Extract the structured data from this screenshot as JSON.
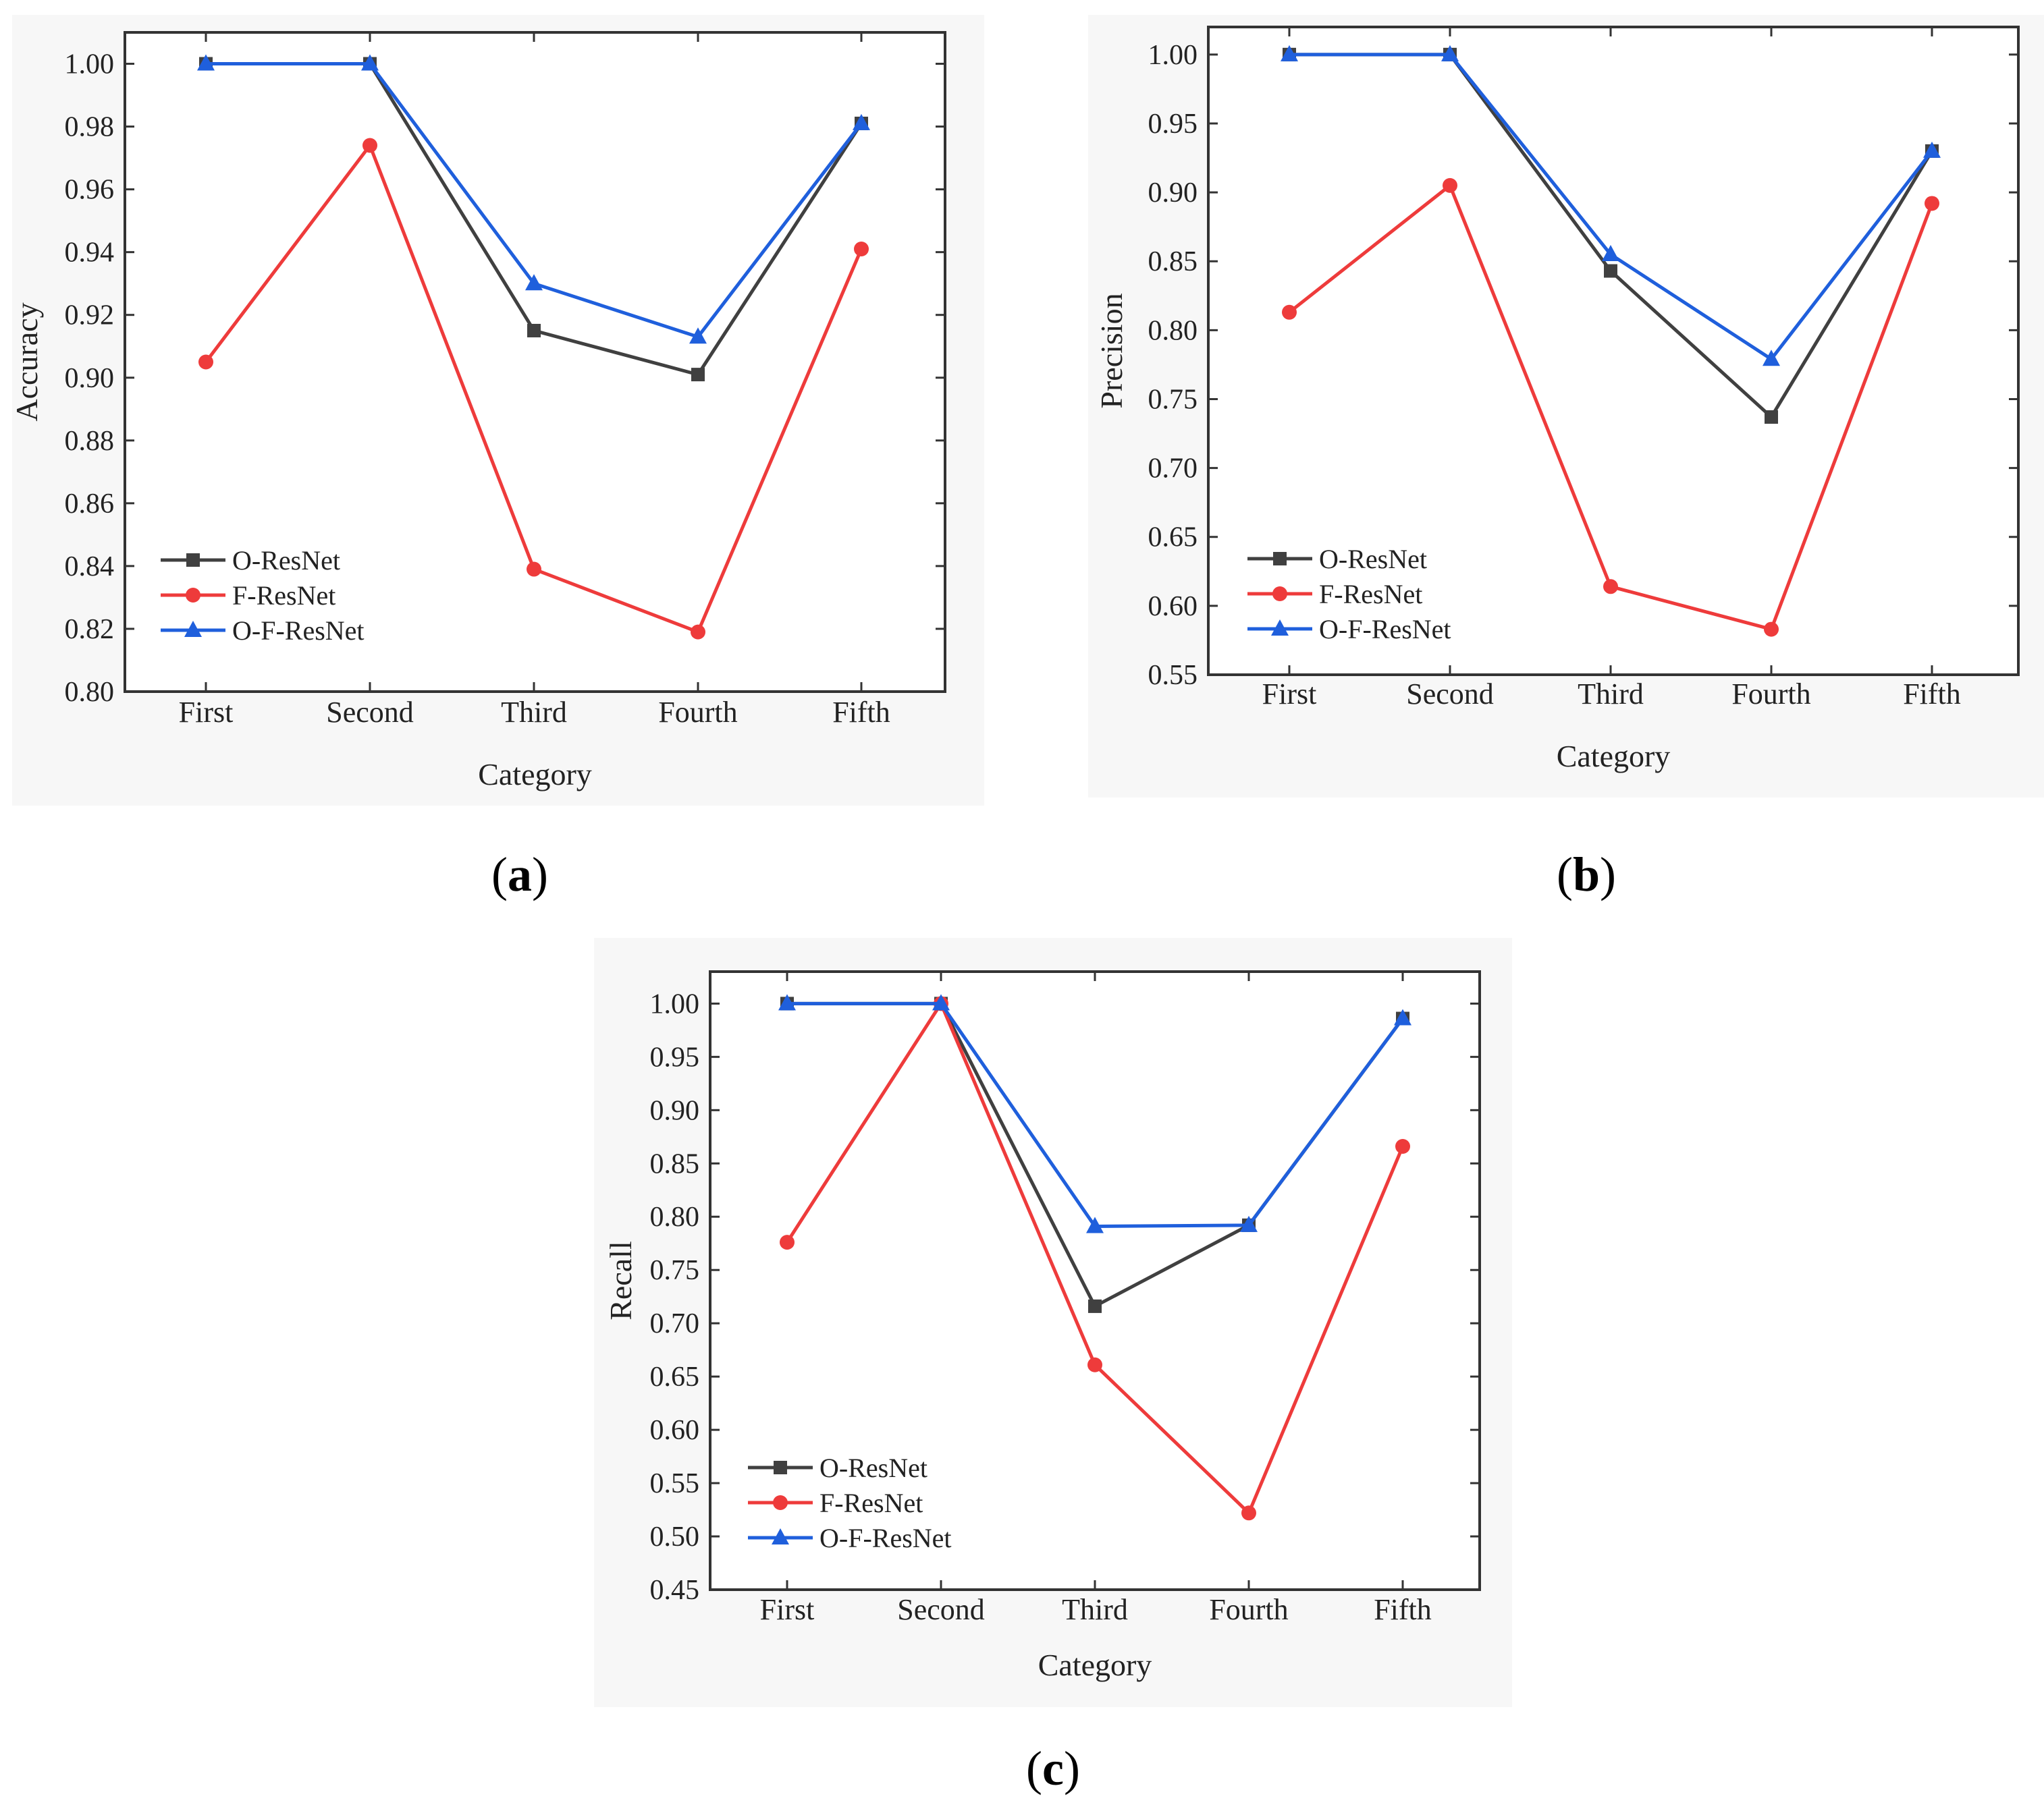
{
  "chart_data": [
    {
      "id": "a",
      "type": "line",
      "panel_label": "a",
      "title": "",
      "xlabel": "Category",
      "ylabel": "Accuracy",
      "categories": [
        "First",
        "Second",
        "Third",
        "Fourth",
        "Fifth"
      ],
      "ylim": [
        0.8,
        1.01
      ],
      "yticks": [
        0.8,
        0.82,
        0.84,
        0.86,
        0.88,
        0.9,
        0.92,
        0.94,
        0.96,
        0.98,
        1.0
      ],
      "ytick_labels": [
        "0.80",
        "0.82",
        "0.84",
        "0.86",
        "0.88",
        "0.90",
        "0.92",
        "0.94",
        "0.96",
        "0.98",
        "1.00"
      ],
      "legend_position": "bottom-left",
      "series": [
        {
          "name": "O-ResNet",
          "color": "#404040",
          "marker": "square",
          "values": [
            1.0,
            1.0,
            0.915,
            0.901,
            0.981
          ]
        },
        {
          "name": "F-ResNet",
          "color": "#ee3b3b",
          "marker": "circle",
          "values": [
            0.905,
            0.974,
            0.839,
            0.819,
            0.941
          ]
        },
        {
          "name": "O-F-ResNet",
          "color": "#1f5fdc",
          "marker": "triangle",
          "values": [
            1.0,
            1.0,
            0.93,
            0.913,
            0.981
          ]
        }
      ]
    },
    {
      "id": "b",
      "type": "line",
      "panel_label": "b",
      "title": "",
      "xlabel": "Category",
      "ylabel": "Precision",
      "categories": [
        "First",
        "Second",
        "Third",
        "Fourth",
        "Fifth"
      ],
      "ylim": [
        0.55,
        1.02
      ],
      "yticks": [
        0.55,
        0.6,
        0.65,
        0.7,
        0.75,
        0.8,
        0.85,
        0.9,
        0.95,
        1.0
      ],
      "ytick_labels": [
        "0.55",
        "0.60",
        "0.65",
        "0.70",
        "0.75",
        "0.80",
        "0.85",
        "0.90",
        "0.95",
        "1.00"
      ],
      "legend_position": "bottom-left",
      "series": [
        {
          "name": "O-ResNet",
          "color": "#404040",
          "marker": "square",
          "values": [
            1.0,
            1.0,
            0.843,
            0.737,
            0.93
          ]
        },
        {
          "name": "F-ResNet",
          "color": "#ee3b3b",
          "marker": "circle",
          "values": [
            0.813,
            0.905,
            0.614,
            0.583,
            0.892
          ]
        },
        {
          "name": "O-F-ResNet",
          "color": "#1f5fdc",
          "marker": "triangle",
          "values": [
            1.0,
            1.0,
            0.855,
            0.779,
            0.93
          ]
        }
      ]
    },
    {
      "id": "c",
      "type": "line",
      "panel_label": "c",
      "title": "",
      "xlabel": "Category",
      "ylabel": "Recall",
      "categories": [
        "First",
        "Second",
        "Third",
        "Fourth",
        "Fifth"
      ],
      "ylim": [
        0.45,
        1.03
      ],
      "yticks": [
        0.45,
        0.5,
        0.55,
        0.6,
        0.65,
        0.7,
        0.75,
        0.8,
        0.85,
        0.9,
        0.95,
        1.0
      ],
      "ytick_labels": [
        "0.45",
        "0.50",
        "0.55",
        "0.60",
        "0.65",
        "0.70",
        "0.75",
        "0.80",
        "0.85",
        "0.90",
        "0.95",
        "1.00"
      ],
      "legend_position": "bottom-left",
      "series": [
        {
          "name": "O-ResNet",
          "color": "#404040",
          "marker": "square",
          "values": [
            1.0,
            1.0,
            0.716,
            0.792,
            0.986
          ]
        },
        {
          "name": "F-ResNet",
          "color": "#ee3b3b",
          "marker": "circle",
          "values": [
            0.776,
            1.0,
            0.661,
            0.522,
            0.866
          ]
        },
        {
          "name": "O-F-ResNet",
          "color": "#1f5fdc",
          "marker": "triangle",
          "values": [
            1.0,
            1.0,
            0.791,
            0.792,
            0.986
          ]
        }
      ]
    }
  ]
}
